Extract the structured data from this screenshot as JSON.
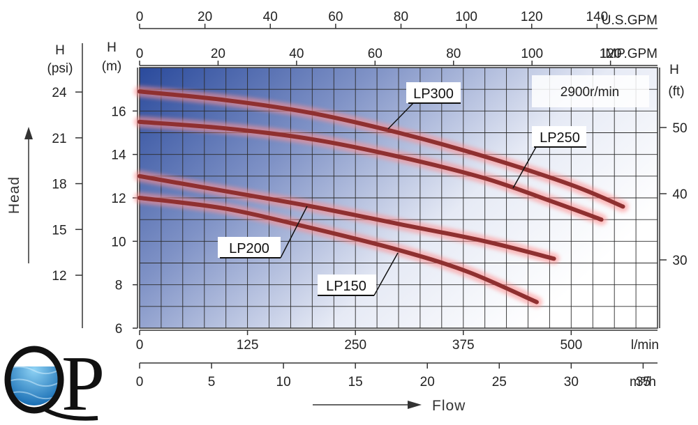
{
  "chart_data": {
    "type": "line",
    "speed_label": "2900r/min",
    "ylim_m": [
      6,
      18
    ],
    "xlim_lmin": [
      0,
      600
    ],
    "series": [
      {
        "name": "LP300",
        "x": [
          0,
          100,
          200,
          300,
          400,
          500,
          560
        ],
        "y": [
          16.9,
          16.5,
          15.9,
          15.0,
          13.9,
          12.6,
          11.6
        ]
      },
      {
        "name": "LP250",
        "x": [
          0,
          100,
          200,
          300,
          400,
          480,
          535
        ],
        "y": [
          15.5,
          15.2,
          14.7,
          13.9,
          12.9,
          11.8,
          11.0
        ]
      },
      {
        "name": "LP200",
        "x": [
          0,
          100,
          200,
          300,
          400,
          480
        ],
        "y": [
          13.0,
          12.3,
          11.6,
          10.8,
          10.0,
          9.2
        ]
      },
      {
        "name": "LP150",
        "x": [
          0,
          100,
          200,
          300,
          380,
          460
        ],
        "y": [
          12.0,
          11.5,
          10.6,
          9.6,
          8.6,
          7.2
        ]
      }
    ],
    "axes": {
      "left_psi": {
        "label": [
          "H",
          "(psi)"
        ],
        "ticks": [
          "24",
          "21",
          "18",
          "15",
          "12"
        ]
      },
      "left_m": {
        "label": [
          "H",
          "(m)"
        ],
        "ticks": [
          "16",
          "14",
          "12",
          "10",
          "8",
          "6"
        ]
      },
      "right_ft": {
        "label": [
          "H",
          "(ft)"
        ],
        "ticks": [
          "50",
          "40",
          "30"
        ]
      },
      "top_usgpm": {
        "unit": "U.S.GPM",
        "ticks": [
          "0",
          "20",
          "40",
          "60",
          "80",
          "100",
          "120",
          "140"
        ]
      },
      "top_impgpm": {
        "unit": "IMP.GPM",
        "ticks": [
          "0",
          "20",
          "40",
          "60",
          "80",
          "100",
          "120"
        ]
      },
      "bottom_lmin": {
        "unit": "l/min",
        "ticks": [
          "0",
          "125",
          "250",
          "375",
          "500"
        ]
      },
      "bottom_m3h": {
        "unit": "m³/h",
        "ticks": [
          "0",
          "5",
          "10",
          "15",
          "20",
          "25",
          "30",
          "35"
        ]
      }
    },
    "head_label": "Head",
    "flow_label": "Flow",
    "grid": true
  },
  "logo": {
    "text": "QP"
  }
}
